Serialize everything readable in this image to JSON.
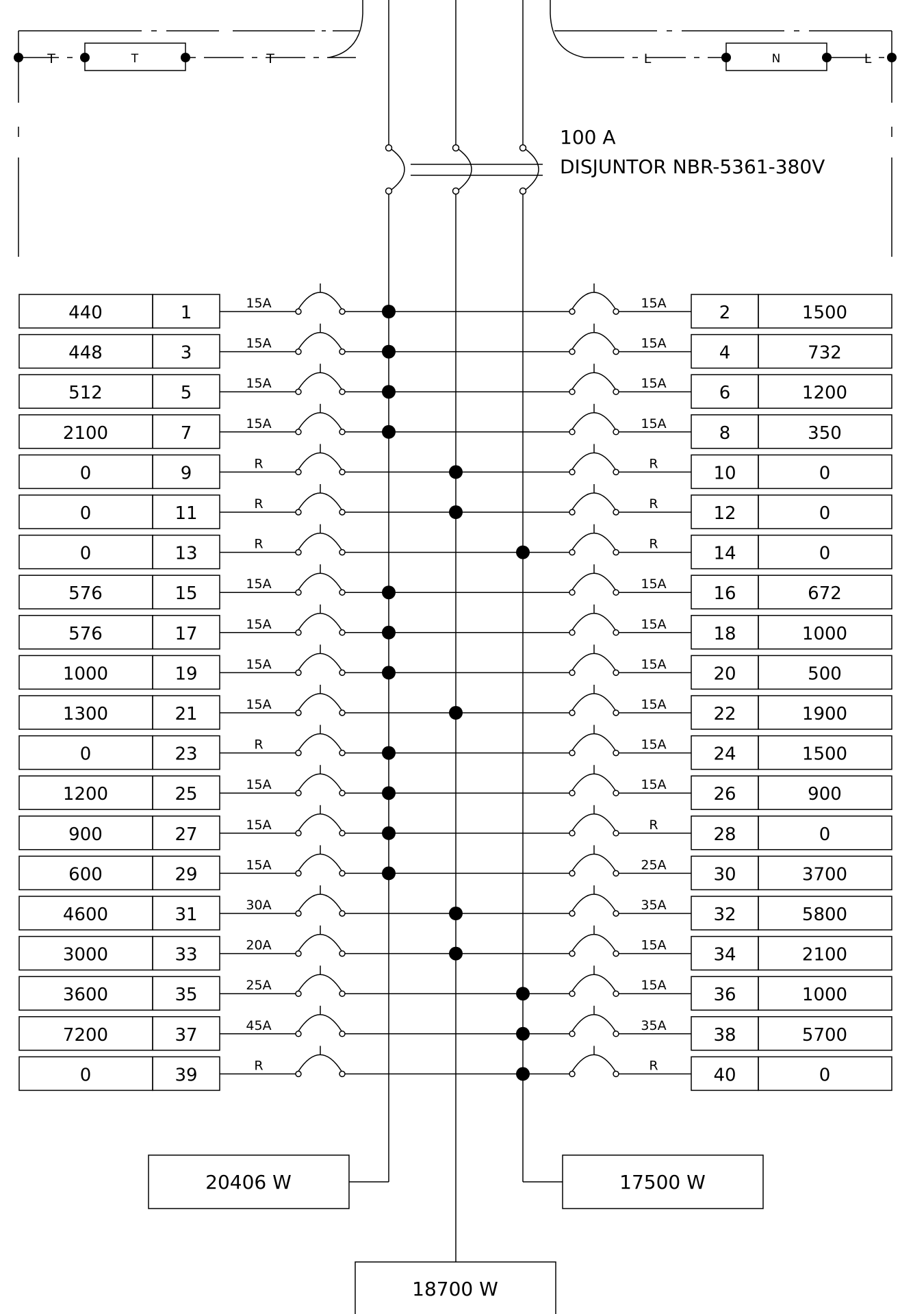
{
  "top": {
    "ground_bar_label": "T",
    "ground_tick_left": "T",
    "ground_tick_right": "T",
    "neutral_bar_label": "N",
    "neutral_tick_left": "L",
    "neutral_tick_right": "L"
  },
  "main_breaker": {
    "rating": "100  A",
    "description": "DISJUNTOR  NBR-5361-380V"
  },
  "circuits": {
    "left": [
      {
        "load": "440",
        "number": "1",
        "breaker": "15A",
        "phase": 1
      },
      {
        "load": "448",
        "number": "3",
        "breaker": "15A",
        "phase": 1
      },
      {
        "load": "512",
        "number": "5",
        "breaker": "15A",
        "phase": 1
      },
      {
        "load": "2100",
        "number": "7",
        "breaker": "15A",
        "phase": 1
      },
      {
        "load": "0",
        "number": "9",
        "breaker": "R",
        "phase": 2
      },
      {
        "load": "0",
        "number": "11",
        "breaker": "R",
        "phase": 2
      },
      {
        "load": "0",
        "number": "13",
        "breaker": "R",
        "phase": 3
      },
      {
        "load": "576",
        "number": "15",
        "breaker": "15A",
        "phase": 1
      },
      {
        "load": "576",
        "number": "17",
        "breaker": "15A",
        "phase": 1
      },
      {
        "load": "1000",
        "number": "19",
        "breaker": "15A",
        "phase": 1
      },
      {
        "load": "1300",
        "number": "21",
        "breaker": "15A",
        "phase": 2
      },
      {
        "load": "0",
        "number": "23",
        "breaker": "R",
        "phase": 1
      },
      {
        "load": "1200",
        "number": "25",
        "breaker": "15A",
        "phase": 1
      },
      {
        "load": "900",
        "number": "27",
        "breaker": "15A",
        "phase": 1
      },
      {
        "load": "600",
        "number": "29",
        "breaker": "15A",
        "phase": 1
      },
      {
        "load": "4600",
        "number": "31",
        "breaker": "30A",
        "phase": 2
      },
      {
        "load": "3000",
        "number": "33",
        "breaker": "20A",
        "phase": 2
      },
      {
        "load": "3600",
        "number": "35",
        "breaker": "25A",
        "phase": 3
      },
      {
        "load": "7200",
        "number": "37",
        "breaker": "45A",
        "phase": 3
      },
      {
        "load": "0",
        "number": "39",
        "breaker": "R",
        "phase": 3
      }
    ],
    "right": [
      {
        "number": "2",
        "load": "1500",
        "breaker": "15A"
      },
      {
        "number": "4",
        "load": "732",
        "breaker": "15A"
      },
      {
        "number": "6",
        "load": "1200",
        "breaker": "15A"
      },
      {
        "number": "8",
        "load": "350",
        "breaker": "15A"
      },
      {
        "number": "10",
        "load": "0",
        "breaker": "R"
      },
      {
        "number": "12",
        "load": "0",
        "breaker": "R"
      },
      {
        "number": "14",
        "load": "0",
        "breaker": "R"
      },
      {
        "number": "16",
        "load": "672",
        "breaker": "15A"
      },
      {
        "number": "18",
        "load": "1000",
        "breaker": "15A"
      },
      {
        "number": "20",
        "load": "500",
        "breaker": "15A"
      },
      {
        "number": "22",
        "load": "1900",
        "breaker": "15A"
      },
      {
        "number": "24",
        "load": "1500",
        "breaker": "15A"
      },
      {
        "number": "26",
        "load": "900",
        "breaker": "15A"
      },
      {
        "number": "28",
        "load": "0",
        "breaker": "R"
      },
      {
        "number": "30",
        "load": "3700",
        "breaker": "25A"
      },
      {
        "number": "32",
        "load": "5800",
        "breaker": "35A"
      },
      {
        "number": "34",
        "load": "2100",
        "breaker": "15A"
      },
      {
        "number": "36",
        "load": "1000",
        "breaker": "15A"
      },
      {
        "number": "38",
        "load": "5700",
        "breaker": "35A"
      },
      {
        "number": "40",
        "load": "0",
        "breaker": "R"
      }
    ]
  },
  "totals": {
    "phase_1": "20406  W",
    "phase_2": "18700  W",
    "phase_3": "17500  W"
  }
}
